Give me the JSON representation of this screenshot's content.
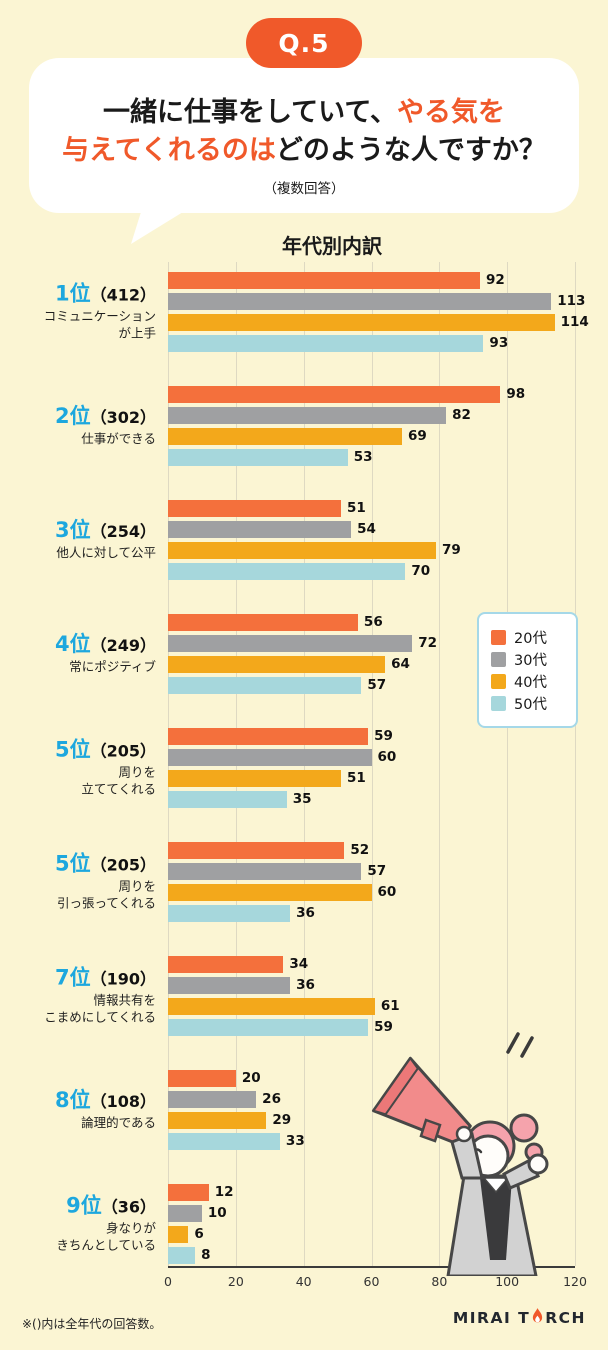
{
  "header": {
    "badge": "Q.5",
    "title_l1_black": "一緒に仕事をしていて、",
    "title_l1_orange": "やる気を",
    "title_l2_orange": "与えてくれるのは",
    "title_l2_black": "どのような人ですか？",
    "subtitle": "（複数回答）"
  },
  "colors": {
    "background": "#FBF5D3",
    "accent_orange": "#F0592A",
    "rank_blue": "#1DA7DE",
    "legend_border": "#A5D8E8"
  },
  "chart_data": {
    "type": "bar",
    "orientation": "horizontal",
    "title": "年代別内訳",
    "xlabel": "",
    "ylabel": "",
    "xlim": [
      0,
      120
    ],
    "x_ticks": [
      0,
      20,
      40,
      60,
      80,
      100,
      120
    ],
    "grid": true,
    "legend_position": "right-middle",
    "series": [
      {
        "name": "20代",
        "color": "#F4703C"
      },
      {
        "name": "30代",
        "color": "#9FA0A2"
      },
      {
        "name": "40代",
        "color": "#F3A81B"
      },
      {
        "name": "50代",
        "color": "#A6D7DC"
      }
    ],
    "groups": [
      {
        "rank": "1位",
        "count": "（412）",
        "label_lines": [
          "コミュニケーション",
          "が上手"
        ],
        "values": [
          92,
          113,
          114,
          93
        ]
      },
      {
        "rank": "2位",
        "count": "（302）",
        "label_lines": [
          "仕事ができる"
        ],
        "values": [
          98,
          82,
          69,
          53
        ]
      },
      {
        "rank": "3位",
        "count": "（254）",
        "label_lines": [
          "他人に対して公平"
        ],
        "values": [
          51,
          54,
          79,
          70
        ]
      },
      {
        "rank": "4位",
        "count": "（249）",
        "label_lines": [
          "常にポジティブ"
        ],
        "values": [
          56,
          72,
          64,
          57
        ]
      },
      {
        "rank": "5位",
        "count": "（205）",
        "label_lines": [
          "周りを",
          "立ててくれる"
        ],
        "values": [
          59,
          60,
          51,
          35
        ]
      },
      {
        "rank": "5位",
        "count": "（205）",
        "label_lines": [
          "周りを",
          "引っ張ってくれる"
        ],
        "values": [
          52,
          57,
          60,
          36
        ]
      },
      {
        "rank": "7位",
        "count": "（190）",
        "label_lines": [
          "情報共有を",
          "こまめにしてくれる"
        ],
        "values": [
          34,
          36,
          61,
          59
        ]
      },
      {
        "rank": "8位",
        "count": "（108）",
        "label_lines": [
          "論理的である"
        ],
        "values": [
          20,
          26,
          29,
          33
        ]
      },
      {
        "rank": "9位",
        "count": "（36）",
        "label_lines": [
          "身なりが",
          "きちんとしている"
        ],
        "values": [
          12,
          10,
          6,
          8
        ]
      }
    ]
  },
  "footer": {
    "note": "※()内は全年代の回答数。",
    "logo_left": "MIRAI T",
    "logo_right": "RCH"
  }
}
